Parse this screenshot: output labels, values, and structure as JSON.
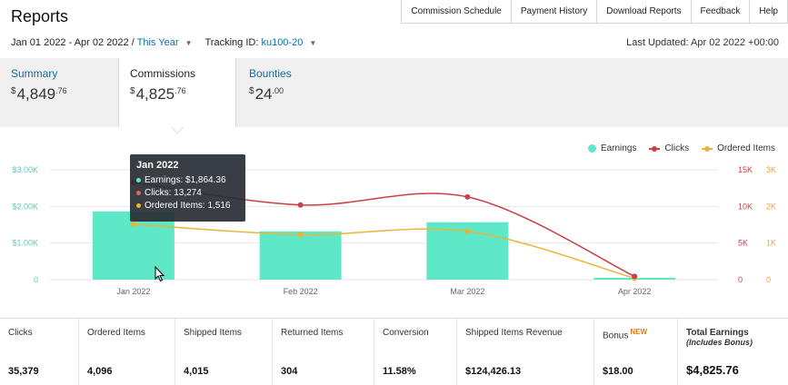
{
  "header": {
    "title": "Reports",
    "nav": [
      "Commission Schedule",
      "Payment History",
      "Download Reports",
      "Feedback",
      "Help"
    ]
  },
  "filters": {
    "date_range": "Jan 01 2022 - Apr 02 2022 / ",
    "date_preset": "This Year",
    "tracking_label": "Tracking ID:",
    "tracking_id": "ku100-20",
    "last_updated": "Last Updated: Apr 02 2022 +00:00"
  },
  "tabs": [
    {
      "label": "Summary",
      "currency": "$",
      "whole": "4,849",
      "cents": ".76"
    },
    {
      "label": "Commissions",
      "currency": "$",
      "whole": "4,825",
      "cents": ".76"
    },
    {
      "label": "Bounties",
      "currency": "$",
      "whole": "24",
      "cents": ".00"
    }
  ],
  "legend": [
    "Earnings",
    "Clicks",
    "Ordered Items"
  ],
  "colors": {
    "earnings": "#5ee8c8",
    "clicks": "#c9404a",
    "ordered": "#e7b53a",
    "link": "#0c6ea3"
  },
  "tooltip": {
    "title": "Jan 2022",
    "earnings": "Earnings: $1,864.36",
    "clicks": "Clicks: 13,274",
    "ordered": "Ordered Items: 1,516"
  },
  "chart_data": {
    "type": "bar",
    "categories": [
      "Jan 2022",
      "Feb 2022",
      "Mar 2022",
      "Apr 2022"
    ],
    "series": [
      {
        "name": "Earnings",
        "type": "bar",
        "axis": "left",
        "values": [
          1864.36,
          1320,
          1570,
          50
        ]
      },
      {
        "name": "Clicks",
        "type": "line",
        "axis": "right1",
        "values": [
          13274,
          10200,
          11300,
          450
        ]
      },
      {
        "name": "Ordered Items",
        "type": "line",
        "axis": "right2",
        "values": [
          1516,
          1230,
          1320,
          40
        ]
      }
    ],
    "left_axis": {
      "ticks": [
        "$3.00K",
        "$2.00K",
        "$1.00K",
        "0"
      ],
      "range": [
        0,
        3000
      ]
    },
    "right1_axis": {
      "ticks": [
        "15K",
        "10K",
        "5K",
        "0"
      ],
      "range": [
        0,
        15000
      ]
    },
    "right2_axis": {
      "ticks": [
        "3K",
        "2K",
        "1K",
        "0"
      ],
      "range": [
        0,
        3000
      ]
    },
    "legend_position": "top-right"
  },
  "stats": [
    {
      "label": "Clicks",
      "value": "35,379"
    },
    {
      "label": "Ordered Items",
      "value": "4,096"
    },
    {
      "label": "Shipped Items",
      "value": "4,015"
    },
    {
      "label": "Returned Items",
      "value": "304"
    },
    {
      "label": "Conversion",
      "value": "11.58%"
    },
    {
      "label": "Shipped Items Revenue",
      "value": "$124,426.13"
    },
    {
      "label": "Bonus",
      "badge": "NEW",
      "value": "$18.00"
    },
    {
      "label": "Total Earnings",
      "sub": "(Includes Bonus)",
      "value": "$4,825.76"
    }
  ]
}
